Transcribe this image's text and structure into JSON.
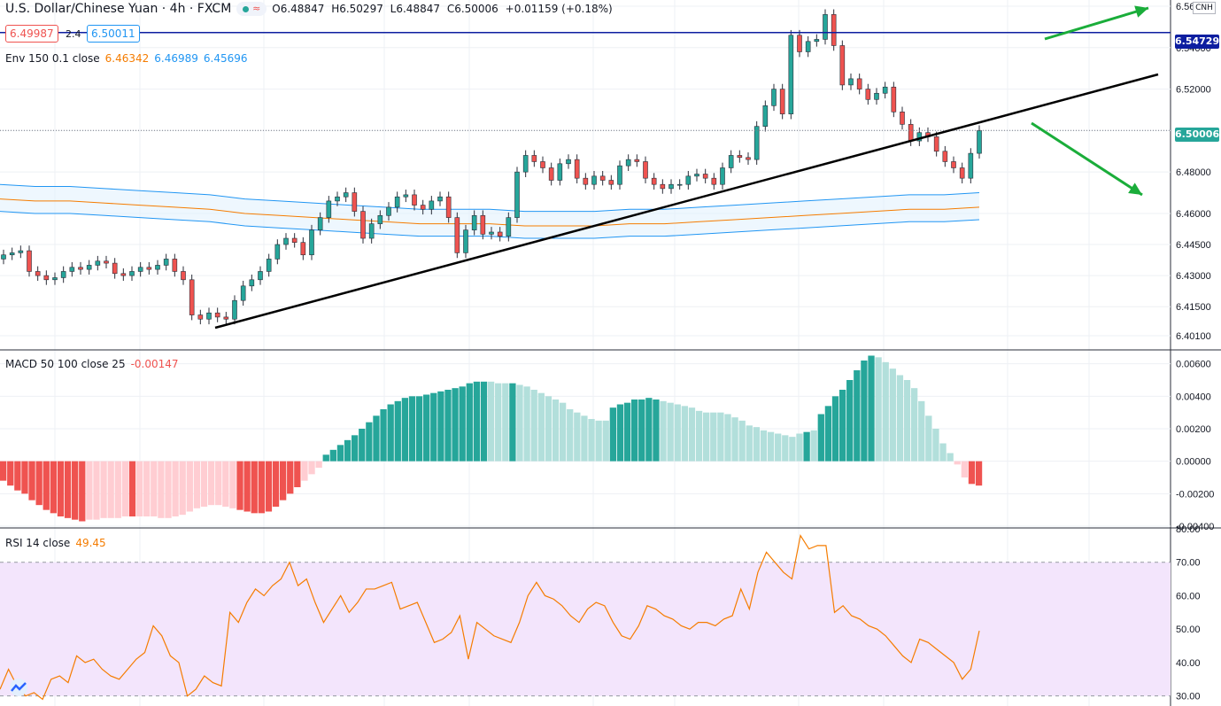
{
  "header": {
    "symbol": "U.S. Dollar/Chinese Yuan · 4h · FXCM",
    "open": "O6.48847",
    "high": "H6.50297",
    "low": "L6.48847",
    "close": "C6.50006",
    "change": "+0.01159 (+0.18%)",
    "bid": "6.49987",
    "spread": "2.4",
    "ask": "6.50011",
    "badge": "CNH"
  },
  "envelope_legend": {
    "label": "Env 150 0.1 close",
    "v1": "6.46342",
    "v2": "6.46989",
    "v3": "6.45696"
  },
  "macd_legend": {
    "label": "MACD 50 100 close 25",
    "value": "-0.00147"
  },
  "rsi_legend": {
    "label": "RSI 14 close",
    "value": "49.45"
  },
  "colors": {
    "up": "#26a69a",
    "down": "#ef5350",
    "env_mid": "#f57c00",
    "env_band": "#2196f3",
    "macd_up_strong": "#26a69a",
    "macd_up_weak": "#b2dfdb",
    "macd_dn_strong": "#ef5350",
    "macd_dn_weak": "#ffcdd2",
    "rsi": "#f57c00",
    "rsi_band": "#f3e5fc",
    "hline": "#0d1ea0",
    "arrow": "#1aad3a",
    "trend": "#000000"
  },
  "chart_data": [
    {
      "type": "candlestick",
      "title": "U.S. Dollar/Chinese Yuan · 4h · FXCM",
      "ylim": [
        6.395,
        6.563
      ],
      "y_ticks": [
        "6.56000",
        "6.54000",
        "6.52000",
        "6.50000",
        "6.48000",
        "6.46000",
        "6.44500",
        "6.43000",
        "6.41500",
        "6.40100"
      ],
      "y_tick_values": [
        6.56,
        6.54,
        6.52,
        6.5,
        6.48,
        6.46,
        6.445,
        6.43,
        6.415,
        6.401
      ],
      "last_price": "6.50006",
      "horizontal_line_label": "6.54729",
      "horizontal_line_value": 6.54729,
      "close": [
        6.44,
        6.441,
        6.442,
        6.432,
        6.43,
        6.428,
        6.429,
        6.432,
        6.434,
        6.433,
        6.435,
        6.437,
        6.436,
        6.431,
        6.43,
        6.432,
        6.434,
        6.433,
        6.435,
        6.438,
        6.432,
        6.428,
        6.411,
        6.409,
        6.412,
        6.41,
        6.409,
        6.418,
        6.425,
        6.428,
        6.432,
        6.438,
        6.445,
        6.448,
        6.446,
        6.44,
        6.452,
        6.458,
        6.466,
        6.468,
        6.47,
        6.461,
        6.448,
        6.455,
        6.459,
        6.463,
        6.468,
        6.469,
        6.464,
        6.462,
        6.466,
        6.468,
        6.458,
        6.441,
        6.452,
        6.459,
        6.45,
        6.451,
        6.449,
        6.458,
        6.48,
        6.488,
        6.485,
        6.482,
        6.476,
        6.484,
        6.486,
        6.477,
        6.474,
        6.478,
        6.476,
        6.474,
        6.483,
        6.486,
        6.485,
        6.477,
        6.474,
        6.472,
        6.474,
        6.474,
        6.478,
        6.479,
        6.477,
        6.474,
        6.482,
        6.488,
        6.487,
        6.486,
        6.502,
        6.512,
        6.52,
        6.508,
        6.546,
        6.538,
        6.543,
        6.544,
        6.556,
        6.541,
        6.522,
        6.525,
        6.52,
        6.515,
        6.518,
        6.521,
        6.509,
        6.503,
        6.495,
        6.499,
        6.497,
        6.49,
        6.485,
        6.482,
        6.477,
        6.489,
        6.5
      ]
    },
    {
      "type": "line",
      "series": [
        {
          "name": "6.46342",
          "values": [
            6.467,
            6.466,
            6.466,
            6.465,
            6.464,
            6.463,
            6.462,
            6.46,
            6.459,
            6.458,
            6.457,
            6.456,
            6.455,
            6.455,
            6.455,
            6.454,
            6.454,
            6.454,
            6.455,
            6.455,
            6.456,
            6.457,
            6.458,
            6.459,
            6.46,
            6.461,
            6.462,
            6.462,
            6.463
          ]
        },
        {
          "name": "6.46989",
          "values": [
            6.474,
            6.473,
            6.473,
            6.472,
            6.471,
            6.47,
            6.469,
            6.467,
            6.466,
            6.465,
            6.464,
            6.463,
            6.462,
            6.462,
            6.462,
            6.461,
            6.461,
            6.461,
            6.462,
            6.462,
            6.463,
            6.464,
            6.465,
            6.466,
            6.467,
            6.468,
            6.469,
            6.469,
            6.47
          ]
        },
        {
          "name": "6.45696",
          "values": [
            6.461,
            6.46,
            6.46,
            6.459,
            6.458,
            6.457,
            6.456,
            6.454,
            6.453,
            6.452,
            6.451,
            6.45,
            6.449,
            6.449,
            6.449,
            6.448,
            6.448,
            6.448,
            6.449,
            6.449,
            6.45,
            6.451,
            6.452,
            6.453,
            6.454,
            6.455,
            6.456,
            6.456,
            6.457
          ]
        }
      ]
    },
    {
      "type": "bar",
      "title": "MACD 50 100 close 25",
      "ylim": [
        -0.004,
        0.0068
      ],
      "y_ticks": [
        "0.00600",
        "0.00400",
        "0.00200",
        "0.00000",
        "-0.00200",
        "-0.00400"
      ],
      "y_tick_values": [
        0.006,
        0.004,
        0.002,
        0.0,
        -0.002,
        -0.004
      ],
      "values": [
        -0.0012,
        -0.0015,
        -0.0018,
        -0.002,
        -0.0024,
        -0.0027,
        -0.003,
        -0.0032,
        -0.0034,
        -0.0035,
        -0.0036,
        -0.0037,
        -0.0036,
        -0.0036,
        -0.0035,
        -0.0035,
        -0.0035,
        -0.0034,
        -0.0034,
        -0.0034,
        -0.0034,
        -0.0034,
        -0.0035,
        -0.0035,
        -0.0034,
        -0.0033,
        -0.0031,
        -0.0029,
        -0.0028,
        -0.0027,
        -0.0027,
        -0.0028,
        -0.0029,
        -0.003,
        -0.0031,
        -0.0032,
        -0.0032,
        -0.0031,
        -0.0028,
        -0.0024,
        -0.002,
        -0.0016,
        -0.0012,
        -0.0008,
        -0.0004,
        0.0004,
        0.0007,
        0.001,
        0.0013,
        0.0016,
        0.002,
        0.0024,
        0.0028,
        0.0032,
        0.0035,
        0.0037,
        0.0039,
        0.004,
        0.004,
        0.0041,
        0.0042,
        0.0043,
        0.0044,
        0.0045,
        0.0046,
        0.0048,
        0.0049,
        0.0049,
        0.0049,
        0.0048,
        0.0048,
        0.0048,
        0.0047,
        0.0046,
        0.0044,
        0.0042,
        0.004,
        0.0038,
        0.0036,
        0.0032,
        0.003,
        0.0028,
        0.0026,
        0.0025,
        0.0025,
        0.0033,
        0.0035,
        0.0036,
        0.0038,
        0.0038,
        0.0039,
        0.0038,
        0.0037,
        0.0036,
        0.0035,
        0.0034,
        0.0033,
        0.0031,
        0.003,
        0.003,
        0.003,
        0.0029,
        0.0027,
        0.0025,
        0.0022,
        0.0021,
        0.0019,
        0.0018,
        0.0017,
        0.0016,
        0.0015,
        0.0017,
        0.0018,
        0.0019,
        0.0029,
        0.0034,
        0.004,
        0.0044,
        0.005,
        0.0056,
        0.0062,
        0.0065,
        0.0064,
        0.0061,
        0.0057,
        0.0053,
        0.005,
        0.0045,
        0.0037,
        0.0028,
        0.002,
        0.0011,
        0.0005,
        -0.0002,
        -0.001,
        -0.0014,
        -0.0015
      ],
      "strength": [
        2,
        2,
        2,
        2,
        2,
        2,
        2,
        2,
        2,
        2,
        2,
        2,
        1,
        1,
        1,
        1,
        1,
        1,
        2,
        1,
        1,
        1,
        1,
        1,
        1,
        1,
        1,
        1,
        1,
        1,
        1,
        1,
        1,
        2,
        2,
        2,
        2,
        2,
        2,
        2,
        2,
        2,
        1,
        1,
        1,
        2,
        2,
        2,
        2,
        2,
        2,
        2,
        2,
        2,
        2,
        2,
        2,
        2,
        2,
        2,
        2,
        2,
        2,
        2,
        2,
        2,
        2,
        2,
        1,
        1,
        1,
        2,
        1,
        1,
        1,
        1,
        1,
        1,
        1,
        1,
        1,
        1,
        1,
        1,
        1,
        2,
        2,
        2,
        2,
        2,
        2,
        2,
        1,
        1,
        1,
        1,
        1,
        1,
        1,
        1,
        1,
        1,
        1,
        1,
        1,
        1,
        1,
        1,
        1,
        1,
        1,
        1,
        2,
        1,
        2,
        2,
        2,
        2,
        2,
        2,
        2,
        2,
        1,
        1,
        1,
        1,
        1,
        1,
        1,
        1,
        1,
        1,
        1,
        1,
        1,
        2,
        2,
        2,
        2
      ]
    },
    {
      "type": "line",
      "title": "RSI 14 close",
      "ylim": [
        27,
        80
      ],
      "y_ticks": [
        "80.00",
        "70.00",
        "60.00",
        "50.00",
        "40.00",
        "30.00"
      ],
      "y_tick_values": [
        80,
        70,
        60,
        50,
        40,
        30
      ],
      "band": [
        30,
        70
      ],
      "values": [
        32,
        38,
        33,
        30,
        31,
        29,
        35,
        36,
        34,
        42,
        40,
        41,
        38,
        36,
        35,
        38,
        41,
        43,
        51,
        48,
        42,
        40,
        30,
        32,
        36,
        34,
        33,
        55,
        52,
        58,
        62,
        60,
        63,
        65,
        70,
        63,
        65,
        58,
        52,
        56,
        60,
        55,
        58,
        62,
        62,
        63,
        64,
        56,
        57,
        58,
        52,
        46,
        47,
        49,
        54,
        41,
        52,
        50,
        48,
        47,
        46,
        52,
        60,
        64,
        60,
        59,
        57,
        54,
        52,
        56,
        58,
        57,
        52,
        48,
        47,
        51,
        57,
        56,
        54,
        53,
        51,
        50,
        52,
        52,
        51,
        53,
        54,
        62,
        56,
        67,
        73,
        70,
        67,
        65,
        78,
        74,
        75,
        75,
        55,
        57,
        54,
        53,
        51,
        50,
        48,
        45,
        42,
        40,
        47,
        46,
        44,
        42,
        40,
        35,
        38,
        49.5
      ]
    }
  ]
}
